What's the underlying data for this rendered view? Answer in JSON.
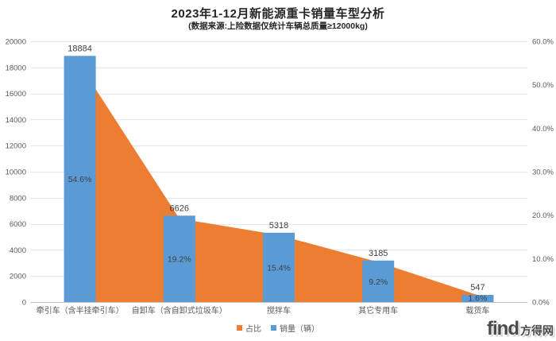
{
  "chart_data": {
    "type": "combo-bar-area",
    "title": "2023年1-12月新能源重卡销量车型分析",
    "subtitle": "(数据来源:上险数据仅统计车辆总质量≥12000kg)",
    "categories": [
      "牵引车（含半挂牵引车）",
      "自卸车（含自卸式垃圾车）",
      "搅拌车",
      "其它专用车",
      "载货车"
    ],
    "series": [
      {
        "name": "占比",
        "type": "area",
        "axis": "right",
        "color": "#ED7D31",
        "values": [
          54.6,
          19.2,
          15.4,
          9.2,
          1.6
        ],
        "labels": [
          "54.6%",
          "19.2%",
          "15.4%",
          "9.2%",
          "1.6%"
        ]
      },
      {
        "name": "销量（辆）",
        "type": "bar",
        "axis": "left",
        "color": "#5B9BD5",
        "values": [
          18884,
          6626,
          5318,
          3185,
          547
        ],
        "labels": [
          "18884",
          "6626",
          "5318",
          "3185",
          "547"
        ]
      }
    ],
    "left_axis": {
      "min": 0,
      "max": 20000,
      "step": 2000,
      "tick_labels": [
        "0",
        "2000",
        "4000",
        "6000",
        "8000",
        "10000",
        "12000",
        "14000",
        "16000",
        "18000",
        "20000"
      ]
    },
    "right_axis": {
      "min": 0,
      "max": 60,
      "step": 10,
      "tick_labels": [
        "0.0%",
        "10.0%",
        "20.0%",
        "30.0%",
        "40.0%",
        "50.0%",
        "60.0%"
      ]
    },
    "grid": true,
    "grid_color": "#E8E8E8",
    "axis_color": "#C6C6C6",
    "tick_text_color": "#595959",
    "label_text_color": "#404040",
    "legend_position": "bottom"
  },
  "watermark": {
    "brand_latin": "find",
    "brand_cjk": "方得网"
  }
}
